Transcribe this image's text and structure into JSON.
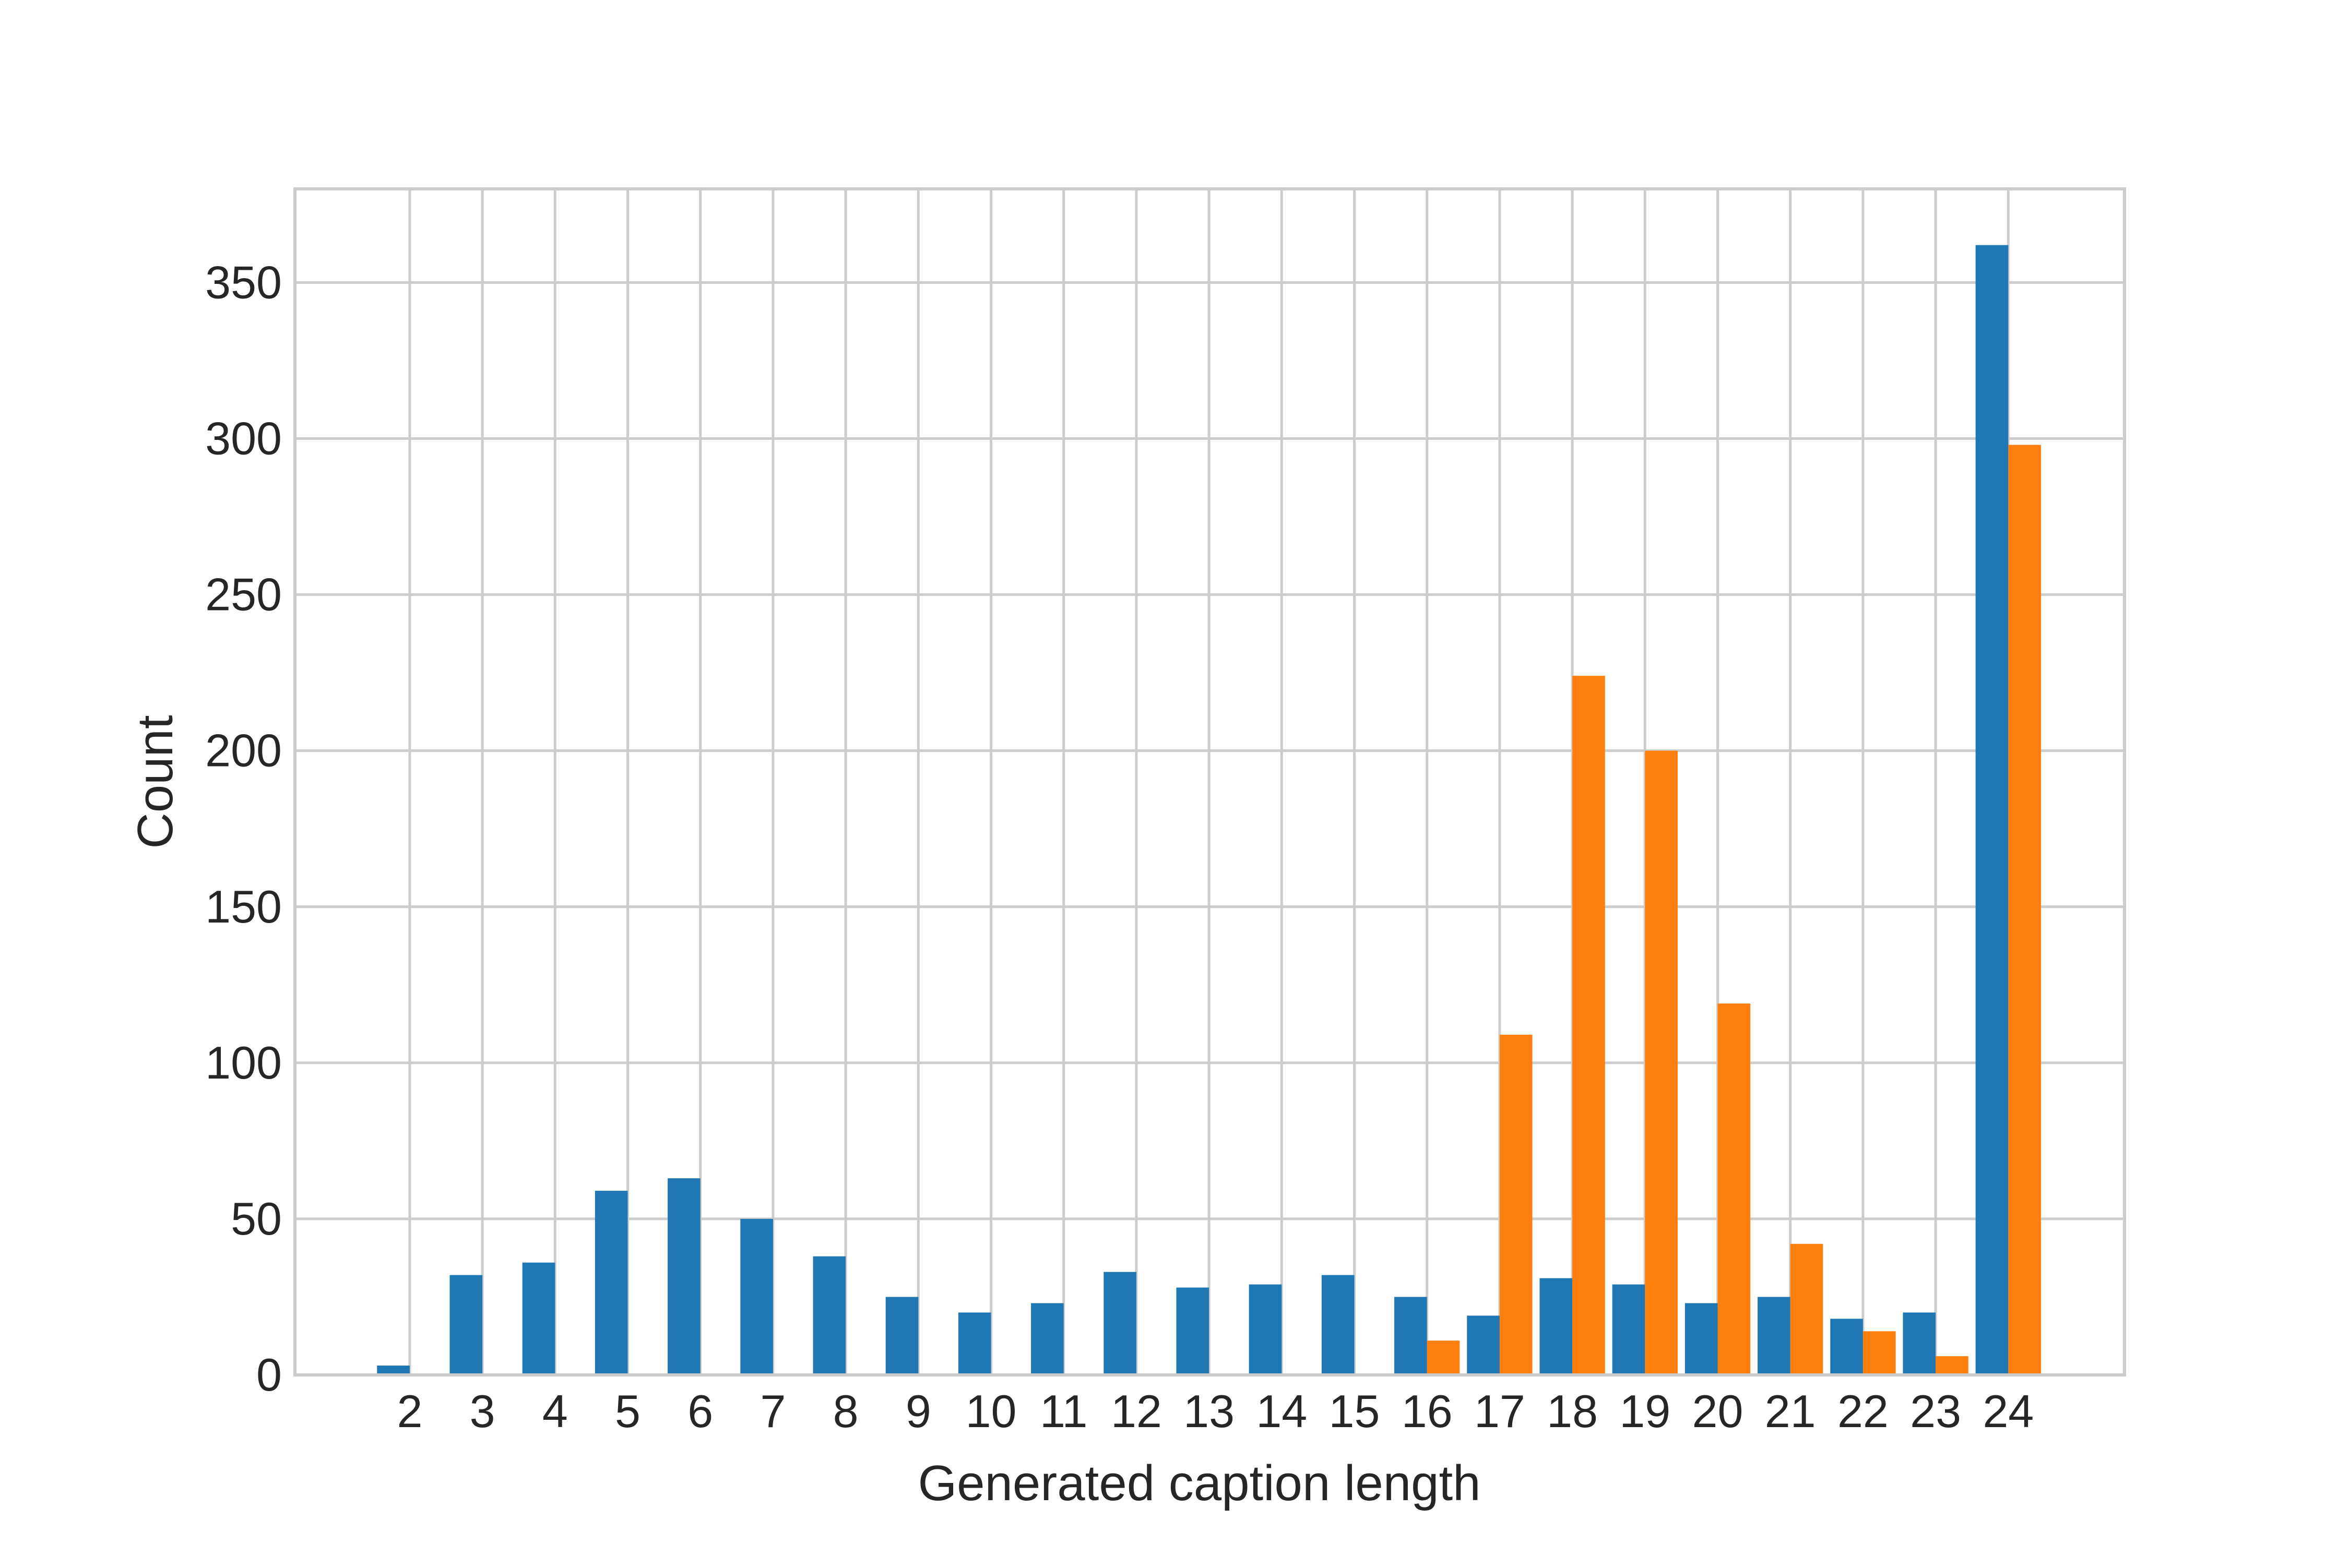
{
  "chart_data": {
    "type": "bar",
    "title": "",
    "xlabel": "Generated caption length",
    "ylabel": "Count",
    "categories": [
      "2",
      "3",
      "4",
      "5",
      "6",
      "7",
      "8",
      "9",
      "10",
      "11",
      "12",
      "13",
      "14",
      "15",
      "16",
      "17",
      "18",
      "19",
      "20",
      "21",
      "22",
      "23",
      "24"
    ],
    "series": [
      {
        "color": "#1f77b4",
        "values": [
          3,
          32,
          36,
          59,
          63,
          50,
          38,
          25,
          20,
          23,
          33,
          28,
          29,
          32,
          25,
          19,
          31,
          29,
          23,
          25,
          18,
          20,
          362
        ]
      },
      {
        "color": "#ff7f0e",
        "values": [
          0,
          0,
          0,
          0,
          0,
          0,
          0,
          0,
          0,
          0,
          0,
          0,
          0,
          0,
          11,
          109,
          224,
          200,
          119,
          42,
          14,
          6,
          298
        ]
      }
    ],
    "ylim": [
      0,
      380
    ],
    "yticks": [
      0,
      50,
      100,
      150,
      200,
      250,
      300,
      350
    ],
    "xlim": [
      0.42,
      25.6
    ],
    "grid": true,
    "legend": "none"
  },
  "colors": {
    "grid": "#cccccc",
    "frame": "#cccccc",
    "text": "#262626",
    "background": "#ffffff"
  }
}
